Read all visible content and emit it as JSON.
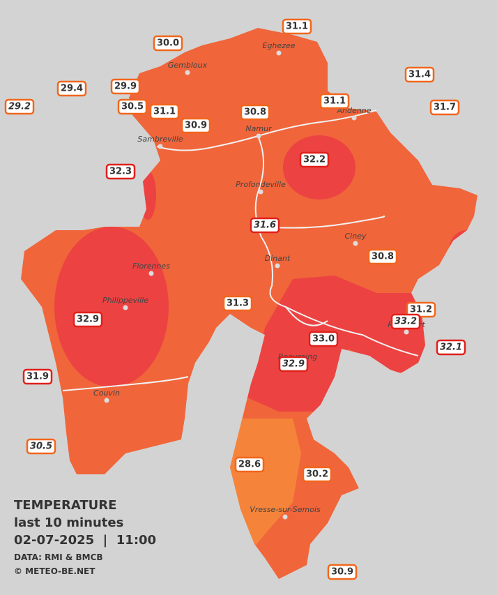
{
  "stations": [
    "31.1",
    "30.0",
    "31.4",
    "29.4",
    "29.9",
    "29.2",
    "30.5",
    "31.1",
    "30.8",
    "31.1",
    "31.7",
    "30.9",
    "32.3",
    "32.2",
    "31.6",
    "30.8",
    "31.3",
    "31.2",
    "32.9",
    "33.2",
    "33.0",
    "32.1",
    "32.9",
    "31.9",
    "30.5",
    "28.6",
    "30.2",
    "30.9"
  ],
  "cities": [
    "Eghezee",
    "Gembloux",
    "Andenne",
    "Namur",
    "Sambreville",
    "Profondeville",
    "Ciney",
    "Florennes",
    "Dinant",
    "Philippeville",
    "Rochefort",
    "Beauraing",
    "Couvin",
    "Vresse-sur-Semois"
  ],
  "legend": {
    "title": "TEMPERATURE",
    "period": "last 10 minutes",
    "datetime": "02-07-2025  |  11:00",
    "source": "DATA: RMI & BMCB",
    "copyright": "© METEO-BE.NET"
  }
}
